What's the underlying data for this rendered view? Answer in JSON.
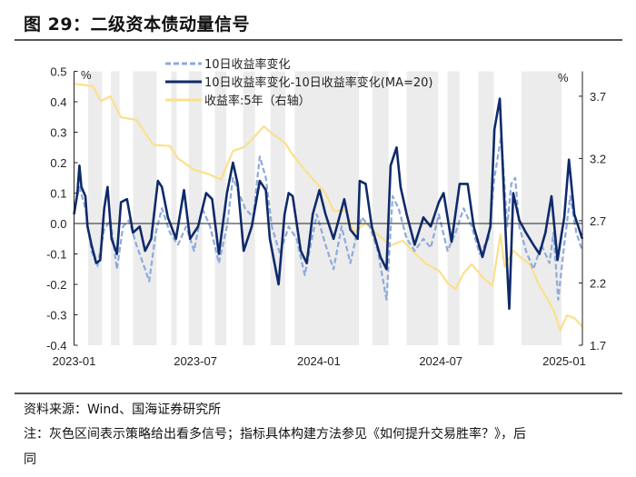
{
  "header": {
    "title": "图 29：二级资本债动量信号"
  },
  "footer": {
    "source": "资料来源：Wind、国海证券研究所",
    "note_line1": "注：灰色区间表示策略给出看多信号；指标具体构建方法参见《如何提升交易胜率？》，后",
    "note_line2": "同"
  },
  "chart_data": {
    "type": "line",
    "title": "",
    "left_axis": {
      "unit": "%",
      "ylim": [
        -0.4,
        0.5
      ],
      "ticks": [
        "0.5",
        "0.4",
        "0.3",
        "0.2",
        "0.1",
        "0.0",
        "-0.1",
        "-0.2",
        "-0.3",
        "-0.4"
      ]
    },
    "right_axis": {
      "unit": "%",
      "ylim": [
        1.7,
        3.9
      ],
      "ticks": [
        "3.7",
        "3.2",
        "2.7",
        "2.2",
        "1.7"
      ]
    },
    "x_ticks": [
      "2023-01",
      "2023-07",
      "2024-01",
      "2024-07",
      "2025-01"
    ],
    "legend_placement": "top-left",
    "grid": false,
    "shaded_regions_label": "灰色区间表示策略给出看多信号",
    "shade_color": "#ececec",
    "shaded_regions": [
      [
        "2023-01-22",
        "2023-02-12"
      ],
      [
        "2023-02-25",
        "2023-03-10"
      ],
      [
        "2023-03-30",
        "2023-05-04"
      ],
      [
        "2023-05-26",
        "2023-06-03"
      ],
      [
        "2023-06-21",
        "2023-07-11"
      ],
      [
        "2023-07-30",
        "2023-08-16"
      ],
      [
        "2023-09-10",
        "2023-09-28"
      ],
      [
        "2023-10-21",
        "2023-11-12"
      ],
      [
        "2023-11-26",
        "2024-03-01"
      ],
      [
        "2024-03-21",
        "2024-04-14"
      ],
      [
        "2024-05-11",
        "2024-06-27"
      ],
      [
        "2024-07-11",
        "2024-07-29"
      ],
      [
        "2024-08-26",
        "2024-09-18"
      ],
      [
        "2024-10-29",
        "2024-12-28"
      ]
    ],
    "series": [
      {
        "name": "10日收益率变化",
        "axis": "left",
        "color": "#8eaadb",
        "style": "dashed",
        "points": [
          [
            "2023-01-01",
            0.04
          ],
          [
            "2023-01-09",
            0.12
          ],
          [
            "2023-01-18",
            0.05
          ],
          [
            "2023-01-27",
            -0.09
          ],
          [
            "2023-02-05",
            -0.14
          ],
          [
            "2023-02-15",
            -0.02
          ],
          [
            "2023-02-24",
            0.01
          ],
          [
            "2023-03-06",
            -0.15
          ],
          [
            "2023-03-15",
            -0.01
          ],
          [
            "2023-03-24",
            0.01
          ],
          [
            "2023-04-04",
            -0.07
          ],
          [
            "2023-04-17",
            -0.15
          ],
          [
            "2023-04-23",
            -0.19
          ],
          [
            "2023-05-03",
            -0.03
          ],
          [
            "2023-05-12",
            0.05
          ],
          [
            "2023-05-24",
            -0.03
          ],
          [
            "2023-06-05",
            -0.07
          ],
          [
            "2023-06-17",
            -0.01
          ],
          [
            "2023-06-29",
            -0.09
          ],
          [
            "2023-07-11",
            0.05
          ],
          [
            "2023-07-23",
            -0.01
          ],
          [
            "2023-08-05",
            -0.13
          ],
          [
            "2023-08-17",
            -0.01
          ],
          [
            "2023-08-26",
            0.15
          ],
          [
            "2023-09-04",
            0.1
          ],
          [
            "2023-09-13",
            0.05
          ],
          [
            "2023-09-25",
            0.02
          ],
          [
            "2023-10-05",
            0.22
          ],
          [
            "2023-10-14",
            0.15
          ],
          [
            "2023-10-23",
            -0.01
          ],
          [
            "2023-11-04",
            -0.1
          ],
          [
            "2023-11-17",
            -0.01
          ],
          [
            "2023-11-29",
            -0.05
          ],
          [
            "2023-12-11",
            -0.17
          ],
          [
            "2023-12-20",
            -0.07
          ],
          [
            "2023-12-29",
            0.03
          ],
          [
            "2024-01-11",
            -0.07
          ],
          [
            "2024-01-23",
            -0.15
          ],
          [
            "2024-02-04",
            -0.01
          ],
          [
            "2024-02-17",
            -0.13
          ],
          [
            "2024-02-25",
            -0.05
          ],
          [
            "2024-03-05",
            0.02
          ],
          [
            "2024-03-17",
            -0.01
          ],
          [
            "2024-03-29",
            -0.09
          ],
          [
            "2024-04-11",
            -0.25
          ],
          [
            "2024-04-20",
            0.09
          ],
          [
            "2024-04-29",
            0.05
          ],
          [
            "2024-05-11",
            -0.05
          ],
          [
            "2024-05-23",
            -0.09
          ],
          [
            "2024-06-05",
            -0.05
          ],
          [
            "2024-06-16",
            -0.08
          ],
          [
            "2024-06-28",
            0.03
          ],
          [
            "2024-07-11",
            -0.09
          ],
          [
            "2024-07-23",
            -0.03
          ],
          [
            "2024-08-04",
            0.05
          ],
          [
            "2024-08-16",
            -0.01
          ],
          [
            "2024-08-28",
            -0.1
          ],
          [
            "2024-09-10",
            -0.05
          ],
          [
            "2024-09-19",
            0.15
          ],
          [
            "2024-09-29",
            0.29
          ],
          [
            "2024-10-08",
            -0.01
          ],
          [
            "2024-10-14",
            0.13
          ],
          [
            "2024-10-20",
            0.15
          ],
          [
            "2024-10-26",
            -0.01
          ],
          [
            "2024-11-05",
            -0.09
          ],
          [
            "2024-11-16",
            -0.15
          ],
          [
            "2024-11-28",
            -0.07
          ],
          [
            "2024-12-10",
            -0.13
          ],
          [
            "2024-12-16",
            -0.03
          ],
          [
            "2024-12-23",
            -0.25
          ],
          [
            "2025-01-01",
            -0.07
          ],
          [
            "2025-01-10",
            0.09
          ],
          [
            "2025-01-19",
            -0.03
          ],
          [
            "2025-01-28",
            -0.09
          ]
        ]
      },
      {
        "name": "10日收益率变化-10日收益率变化(MA=20)",
        "axis": "left",
        "color": "#0f2a6b",
        "style": "solid",
        "points": [
          [
            "2023-01-01",
            0.03
          ],
          [
            "2023-01-06",
            0.1
          ],
          [
            "2023-01-09",
            0.19
          ],
          [
            "2023-01-12",
            0.12
          ],
          [
            "2023-01-18",
            0.09
          ],
          [
            "2023-01-21",
            -0.01
          ],
          [
            "2023-01-27",
            -0.07
          ],
          [
            "2023-02-03",
            -0.13
          ],
          [
            "2023-02-09",
            -0.12
          ],
          [
            "2023-02-15",
            0.05
          ],
          [
            "2023-02-20",
            0.12
          ],
          [
            "2023-02-26",
            -0.05
          ],
          [
            "2023-03-06",
            -0.1
          ],
          [
            "2023-03-12",
            0.07
          ],
          [
            "2023-03-21",
            0.08
          ],
          [
            "2023-03-30",
            -0.03
          ],
          [
            "2023-04-09",
            -0.01
          ],
          [
            "2023-04-17",
            -0.09
          ],
          [
            "2023-04-26",
            -0.05
          ],
          [
            "2023-05-06",
            0.14
          ],
          [
            "2023-05-12",
            0.12
          ],
          [
            "2023-05-21",
            0.02
          ],
          [
            "2023-06-02",
            -0.05
          ],
          [
            "2023-06-14",
            0.11
          ],
          [
            "2023-06-23",
            -0.05
          ],
          [
            "2023-07-05",
            -0.01
          ],
          [
            "2023-07-17",
            0.1
          ],
          [
            "2023-07-26",
            0.08
          ],
          [
            "2023-08-05",
            -0.1
          ],
          [
            "2023-08-17",
            0.1
          ],
          [
            "2023-08-26",
            0.2
          ],
          [
            "2023-09-02",
            0.13
          ],
          [
            "2023-09-11",
            -0.09
          ],
          [
            "2023-09-23",
            -0.01
          ],
          [
            "2023-10-05",
            0.14
          ],
          [
            "2023-10-14",
            0.11
          ],
          [
            "2023-10-20",
            -0.05
          ],
          [
            "2023-11-02",
            -0.2
          ],
          [
            "2023-11-11",
            0.03
          ],
          [
            "2023-11-17",
            0.1
          ],
          [
            "2023-11-23",
            0.09
          ],
          [
            "2023-12-05",
            -0.09
          ],
          [
            "2023-12-14",
            -0.13
          ],
          [
            "2023-12-23",
            0.03
          ],
          [
            "2024-01-02",
            0.11
          ],
          [
            "2024-01-11",
            0.03
          ],
          [
            "2024-01-23",
            -0.05
          ],
          [
            "2024-02-08",
            0.08
          ],
          [
            "2024-02-17",
            -0.02
          ],
          [
            "2024-02-28",
            -0.05
          ],
          [
            "2024-03-02",
            0.14
          ],
          [
            "2024-03-11",
            0.13
          ],
          [
            "2024-03-20",
            -0.01
          ],
          [
            "2024-04-02",
            -0.11
          ],
          [
            "2024-04-11",
            -0.15
          ],
          [
            "2024-04-17",
            0.19
          ],
          [
            "2024-04-26",
            0.25
          ],
          [
            "2024-05-02",
            0.12
          ],
          [
            "2024-05-11",
            0.03
          ],
          [
            "2024-05-23",
            -0.07
          ],
          [
            "2024-06-05",
            0.02
          ],
          [
            "2024-06-16",
            -0.01
          ],
          [
            "2024-06-28",
            0.07
          ],
          [
            "2024-07-05",
            0.1
          ],
          [
            "2024-07-17",
            -0.06
          ],
          [
            "2024-07-29",
            0.13
          ],
          [
            "2024-08-10",
            0.13
          ],
          [
            "2024-08-19",
            -0.01
          ],
          [
            "2024-09-01",
            -0.11
          ],
          [
            "2024-09-13",
            -0.01
          ],
          [
            "2024-09-19",
            0.31
          ],
          [
            "2024-09-27",
            0.41
          ],
          [
            "2024-10-08",
            -0.15
          ],
          [
            "2024-10-11",
            -0.28
          ],
          [
            "2024-10-17",
            0.1
          ],
          [
            "2024-10-26",
            0.01
          ],
          [
            "2024-11-05",
            -0.03
          ],
          [
            "2024-11-16",
            -0.07
          ],
          [
            "2024-11-25",
            -0.1
          ],
          [
            "2024-12-04",
            -0.03
          ],
          [
            "2024-12-13",
            0.09
          ],
          [
            "2024-12-22",
            -0.12
          ],
          [
            "2025-01-01",
            0.02
          ],
          [
            "2025-01-08",
            0.21
          ],
          [
            "2025-01-16",
            0.03
          ],
          [
            "2025-01-28",
            -0.05
          ]
        ]
      },
      {
        "name": "收益率:5年（右轴）",
        "axis": "right",
        "color": "#fbe08c",
        "style": "solid",
        "points": [
          [
            "2023-01-01",
            3.8
          ],
          [
            "2023-01-29",
            3.78
          ],
          [
            "2023-02-10",
            3.66
          ],
          [
            "2023-02-24",
            3.7
          ],
          [
            "2023-03-12",
            3.53
          ],
          [
            "2023-04-04",
            3.51
          ],
          [
            "2023-04-29",
            3.31
          ],
          [
            "2023-05-24",
            3.3
          ],
          [
            "2023-06-05",
            3.2
          ],
          [
            "2023-06-29",
            3.11
          ],
          [
            "2023-07-23",
            3.07
          ],
          [
            "2023-08-08",
            3.03
          ],
          [
            "2023-08-26",
            3.26
          ],
          [
            "2023-09-11",
            3.29
          ],
          [
            "2023-09-23",
            3.35
          ],
          [
            "2023-10-11",
            3.46
          ],
          [
            "2023-10-23",
            3.4
          ],
          [
            "2023-11-11",
            3.33
          ],
          [
            "2023-11-23",
            3.23
          ],
          [
            "2023-12-17",
            3.07
          ],
          [
            "2024-01-11",
            2.92
          ],
          [
            "2024-01-23",
            2.78
          ],
          [
            "2024-02-10",
            2.78
          ],
          [
            "2024-02-22",
            2.61
          ],
          [
            "2024-03-11",
            2.68
          ],
          [
            "2024-03-29",
            2.59
          ],
          [
            "2024-04-17",
            2.5
          ],
          [
            "2024-05-05",
            2.54
          ],
          [
            "2024-05-23",
            2.44
          ],
          [
            "2024-06-10",
            2.35
          ],
          [
            "2024-06-28",
            2.3
          ],
          [
            "2024-07-11",
            2.2
          ],
          [
            "2024-07-23",
            2.15
          ],
          [
            "2024-08-04",
            2.28
          ],
          [
            "2024-08-16",
            2.35
          ],
          [
            "2024-09-04",
            2.23
          ],
          [
            "2024-09-16",
            2.18
          ],
          [
            "2024-09-28",
            2.59
          ],
          [
            "2024-10-04",
            2.33
          ],
          [
            "2024-10-17",
            2.46
          ],
          [
            "2024-10-29",
            2.4
          ],
          [
            "2024-11-11",
            2.35
          ],
          [
            "2024-11-23",
            2.2
          ],
          [
            "2024-12-08",
            2.06
          ],
          [
            "2024-12-17",
            1.97
          ],
          [
            "2024-12-26",
            1.82
          ],
          [
            "2025-01-05",
            1.94
          ],
          [
            "2025-01-16",
            1.92
          ],
          [
            "2025-01-28",
            1.85
          ]
        ]
      }
    ]
  }
}
